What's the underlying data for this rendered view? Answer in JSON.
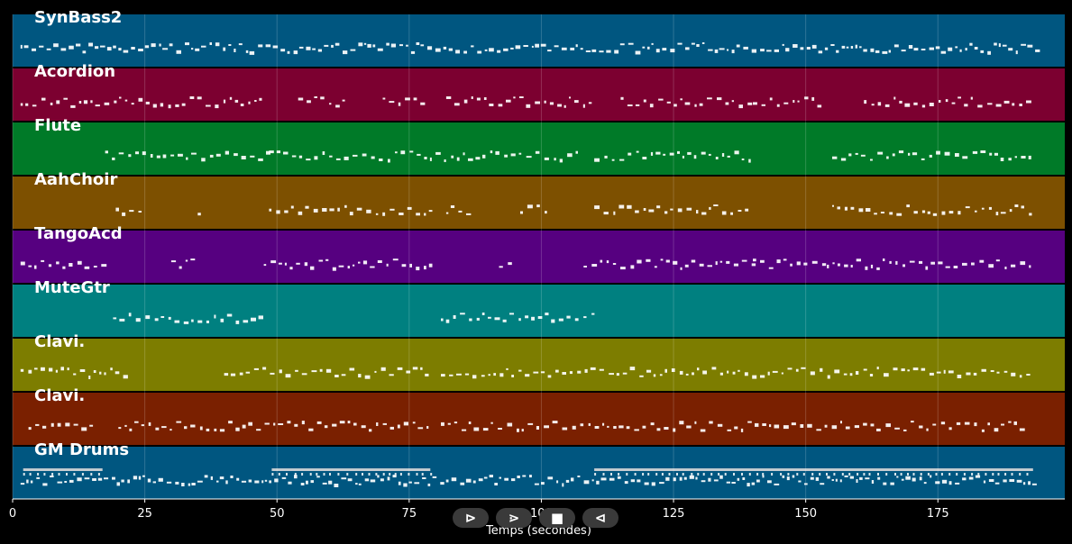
{
  "chart_data": {
    "type": "piano-roll",
    "xlabel": "Temps (secondes)",
    "xlim": [
      0,
      199
    ],
    "xticks": [
      0,
      25,
      50,
      75,
      100,
      125,
      150,
      175
    ],
    "grid": true,
    "tracks": [
      {
        "name": "SynBass2",
        "color": "#005680",
        "note_segments": [
          [
            1.5,
            193.5
          ]
        ]
      },
      {
        "name": "Acordion",
        "color": "#7c0030",
        "note_segments": [
          [
            1.5,
            48
          ],
          [
            54,
            63
          ],
          [
            70,
            78
          ],
          [
            82,
            110
          ],
          [
            115,
            140
          ],
          [
            140,
            153
          ],
          [
            161,
            193
          ]
        ]
      },
      {
        "name": "Flute",
        "color": "#007a28",
        "note_segments": [
          [
            17.5,
            48
          ],
          [
            48.5,
            79.5
          ],
          [
            80,
            107
          ],
          [
            110,
            140
          ],
          [
            155,
            193
          ]
        ]
      },
      {
        "name": "AahChoir",
        "color": "#7d5000",
        "note_segments": [
          [
            19.5,
            25
          ],
          [
            35,
            36
          ],
          [
            48.5,
            79.5
          ],
          [
            82,
            86
          ],
          [
            96,
            102
          ],
          [
            110,
            140
          ],
          [
            155,
            193
          ]
        ]
      },
      {
        "name": "TangoAcd",
        "color": "#560080",
        "note_segments": [
          [
            1.5,
            17
          ],
          [
            30,
            34
          ],
          [
            47.5,
            79.5
          ],
          [
            92,
            95
          ],
          [
            108,
            140
          ],
          [
            140,
            154
          ],
          [
            154,
            193
          ]
        ]
      },
      {
        "name": "MuteGtr",
        "color": "#008080",
        "note_segments": [
          [
            19,
            48
          ],
          [
            81,
            110
          ]
        ]
      },
      {
        "name": "Clavi.",
        "color": "#7d7d00",
        "note_segments": [
          [
            1.5,
            21
          ],
          [
            40,
            79
          ],
          [
            81,
            193
          ]
        ]
      },
      {
        "name": "Clavi.",
        "color": "#7a2000",
        "note_segments": [
          [
            3,
            16
          ],
          [
            20,
            79
          ],
          [
            81,
            192
          ]
        ]
      },
      {
        "name": "GM Drums",
        "color": "#005680",
        "note_segments": [
          [
            1.5,
            193.5
          ]
        ],
        "cymbal_segments": [
          [
            2,
            17
          ],
          [
            49,
            79
          ],
          [
            110,
            193
          ]
        ]
      }
    ]
  },
  "controls": {
    "play_label": "⊳",
    "next_label": "⋗",
    "stop_label": "■",
    "prev_label": "⊲"
  }
}
